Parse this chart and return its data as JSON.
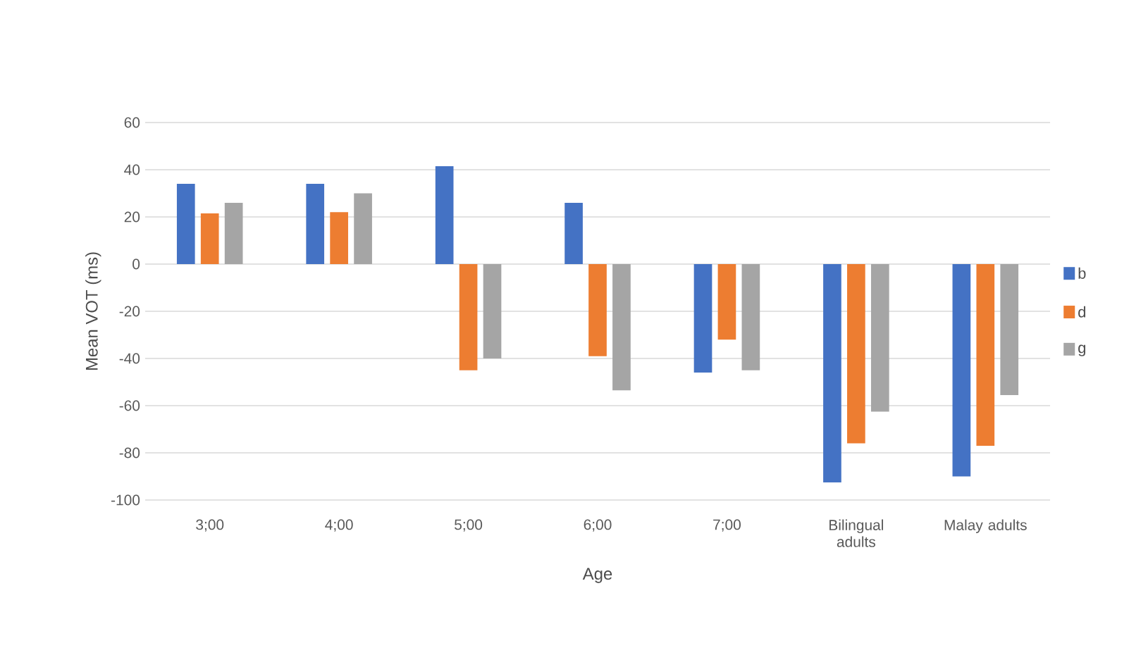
{
  "chart_data": {
    "type": "bar",
    "xlabel": "Age",
    "ylabel": "Mean VOT (ms)",
    "categories": [
      "3;00",
      "4;00",
      "5;00",
      "6;00",
      "7;00",
      "Bilingual adults",
      "Malay adults"
    ],
    "series": [
      {
        "name": "b",
        "color": "#4472c4",
        "values": [
          34,
          34,
          41.5,
          26,
          -46,
          -92.5,
          -90
        ]
      },
      {
        "name": "d",
        "color": "#ed7d31",
        "values": [
          21.5,
          22,
          -45,
          -39,
          -32,
          -76,
          -77
        ]
      },
      {
        "name": "g",
        "color": "#a5a5a5",
        "values": [
          26,
          30,
          -40,
          -53.5,
          -45,
          -62.5,
          -55.5
        ]
      }
    ],
    "ylim": [
      -100,
      60
    ],
    "yticks": [
      -100,
      -80,
      -60,
      -40,
      -20,
      0,
      20,
      40,
      60
    ],
    "grid": "y",
    "legend": "right"
  }
}
